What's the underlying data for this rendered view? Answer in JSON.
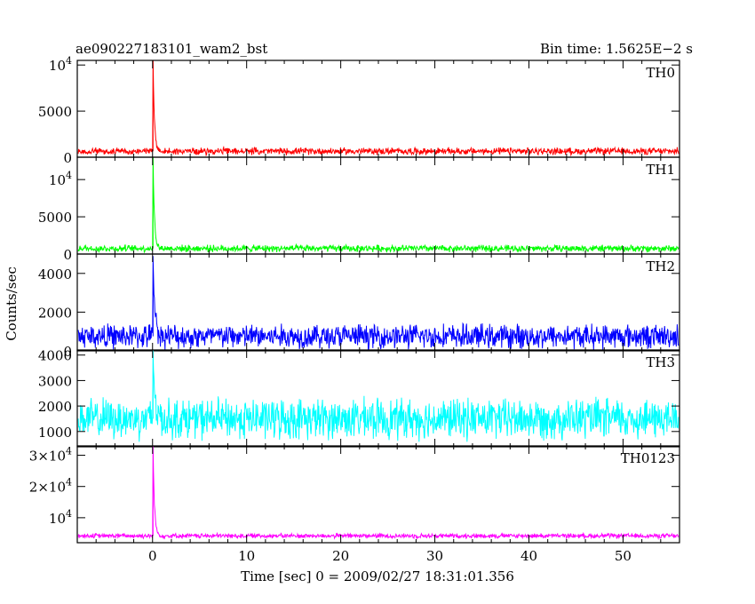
{
  "figure": {
    "title_left": "ae090227183101_wam2_bst",
    "title_right": "Bin time: 1.5625E−2 s",
    "ylabel": "Counts/sec",
    "xlabel": "Time [sec] 0 = 2009/02/27 18:31:01.356"
  },
  "chart_data": [
    {
      "type": "line",
      "panel": "TH0",
      "series_name": "TH0",
      "color": "#ff0000",
      "xlim": [
        -8,
        56
      ],
      "ylim": [
        0,
        10500
      ],
      "x_ticks": [
        0,
        10,
        20,
        30,
        40,
        50
      ],
      "y_ticks": [
        {
          "value": 0,
          "label": "0"
        },
        {
          "value": 5000,
          "label": "5000"
        },
        {
          "value": 10000,
          "label": "10",
          "exp": "4"
        }
      ],
      "data_x_range": [
        -7.9,
        55.9
      ],
      "baseline_mean": 650,
      "noise_amplitude": 450,
      "burst": {
        "time": 0.05,
        "peak": 10500,
        "decay_sec": 0.15
      }
    },
    {
      "type": "line",
      "panel": "TH1",
      "series_name": "TH1",
      "color": "#00ff00",
      "xlim": [
        -8,
        56
      ],
      "ylim": [
        0,
        13000
      ],
      "x_ticks": [
        0,
        10,
        20,
        30,
        40,
        50
      ],
      "y_ticks": [
        {
          "value": 0,
          "label": "0"
        },
        {
          "value": 5000,
          "label": "5000"
        },
        {
          "value": 10000,
          "label": "10",
          "exp": "4"
        }
      ],
      "data_x_range": [
        -7.9,
        55.9
      ],
      "baseline_mean": 750,
      "noise_amplitude": 550,
      "burst": {
        "time": 0.05,
        "peak": 13000,
        "decay_sec": 0.15
      }
    },
    {
      "type": "line",
      "panel": "TH2",
      "series_name": "TH2",
      "color": "#0000ff",
      "xlim": [
        -8,
        56
      ],
      "ylim": [
        0,
        5000
      ],
      "x_ticks": [
        0,
        10,
        20,
        30,
        40,
        50
      ],
      "y_ticks": [
        {
          "value": 0,
          "label": "0"
        },
        {
          "value": 2000,
          "label": "2000"
        },
        {
          "value": 4000,
          "label": "4000"
        }
      ],
      "data_x_range": [
        -7.9,
        55.9
      ],
      "baseline_mean": 750,
      "noise_amplitude": 750,
      "burst": {
        "time": 0.05,
        "peak": 4900,
        "decay_sec": 0.2
      }
    },
    {
      "type": "line",
      "panel": "TH3",
      "series_name": "TH3",
      "color": "#00ffff",
      "xlim": [
        -8,
        56
      ],
      "ylim": [
        400,
        4200
      ],
      "x_ticks": [
        0,
        10,
        20,
        30,
        40,
        50
      ],
      "y_ticks": [
        {
          "value": 1000,
          "label": "1000"
        },
        {
          "value": 2000,
          "label": "2000"
        },
        {
          "value": 3000,
          "label": "3000"
        },
        {
          "value": 4000,
          "label": "4000"
        }
      ],
      "data_x_range": [
        -7.9,
        55.9
      ],
      "baseline_mean": 1500,
      "noise_amplitude": 950,
      "burst": {
        "time": 0.05,
        "peak": 4200,
        "decay_sec": 0.2
      }
    },
    {
      "type": "line",
      "panel": "TH0123",
      "series_name": "TH0123",
      "color": "#ff00ff",
      "xlim": [
        -8,
        56
      ],
      "ylim": [
        2000,
        33000
      ],
      "x_ticks": [
        0,
        10,
        20,
        30,
        40,
        50
      ],
      "y_ticks": [
        {
          "value": 10000,
          "label": "10",
          "exp": "4"
        },
        {
          "value": 20000,
          "label": "2×10",
          "exp": "4"
        },
        {
          "value": 30000,
          "label": "3×10",
          "exp": "4"
        }
      ],
      "data_x_range": [
        -7.9,
        55.9
      ],
      "baseline_mean": 4200,
      "noise_amplitude": 900,
      "burst": {
        "time": 0.05,
        "peak": 33000,
        "decay_sec": 0.15
      }
    }
  ]
}
